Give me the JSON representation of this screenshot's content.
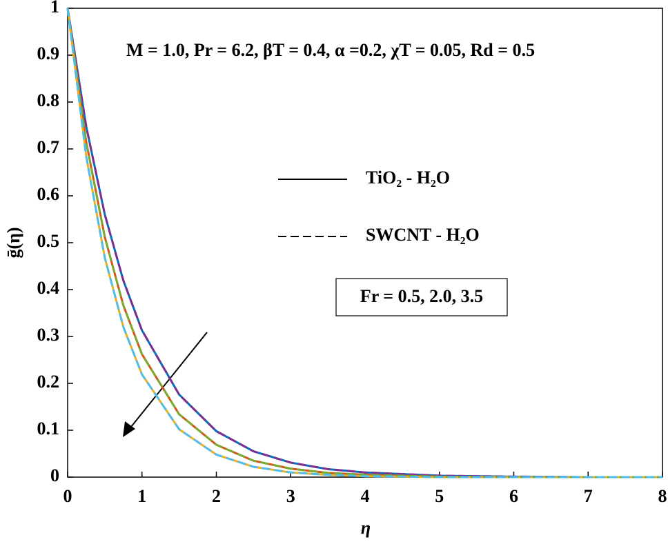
{
  "chart_data": {
    "type": "line",
    "annotation": "M = 1.0, Pr = 6.2, βT = 0.4, α =0.2, χT = 0.05, Rd = 0.5",
    "box_label": "Fr = 0.5, 2.0, 3.5",
    "x_label": "η",
    "y_label": "ḡ(η)",
    "x": [
      0,
      0.25,
      0.5,
      0.75,
      1,
      1.5,
      2,
      2.5,
      3,
      3.5,
      4,
      5,
      6,
      7,
      8
    ],
    "series": [
      {
        "name": "TiO₂ - H₂O",
        "style": "solid",
        "color": "#0072bd",
        "values": [
          1,
          0.748,
          0.56,
          0.419,
          0.313,
          0.176,
          0.098,
          0.055,
          0.031,
          0.017,
          0.01,
          0.003,
          0.001,
          0,
          0
        ]
      },
      {
        "name": "TiO₂ - H₂O",
        "style": "solid",
        "color": "#d95319",
        "values": [
          1,
          0.715,
          0.512,
          0.366,
          0.262,
          0.134,
          0.069,
          0.035,
          0.018,
          0.009,
          0.005,
          0.001,
          0,
          0,
          0
        ]
      },
      {
        "name": "TiO₂ - H₂O",
        "style": "solid",
        "color": "#edb120",
        "values": [
          1,
          0.684,
          0.468,
          0.32,
          0.219,
          0.102,
          0.048,
          0.022,
          0.01,
          0.005,
          0.002,
          0,
          0,
          0,
          0
        ]
      },
      {
        "name": "SWCNT - H₂O",
        "style": "dashed",
        "color": "#7e2f8e",
        "values": [
          1,
          0.748,
          0.56,
          0.419,
          0.313,
          0.176,
          0.098,
          0.055,
          0.031,
          0.017,
          0.01,
          0.003,
          0.001,
          0,
          0
        ]
      },
      {
        "name": "SWCNT - H₂O",
        "style": "dashed",
        "color": "#77ac30",
        "values": [
          1,
          0.715,
          0.512,
          0.366,
          0.262,
          0.134,
          0.069,
          0.035,
          0.018,
          0.009,
          0.005,
          0.001,
          0,
          0,
          0
        ]
      },
      {
        "name": "SWCNT - H₂O",
        "style": "dashed",
        "color": "#4dbeee",
        "values": [
          1,
          0.684,
          0.468,
          0.32,
          0.219,
          0.102,
          0.048,
          0.022,
          0.01,
          0.005,
          0.002,
          0,
          0,
          0,
          0
        ]
      }
    ],
    "xlim": [
      0,
      8
    ],
    "xticks": [
      0,
      1,
      2,
      3,
      4,
      5,
      6,
      7,
      8
    ],
    "ylim": [
      0,
      1
    ],
    "yticks": [
      0,
      0.1,
      0.2,
      0.3,
      0.4,
      0.5,
      0.6,
      0.7,
      0.8,
      0.9,
      1
    ],
    "grid": false
  }
}
